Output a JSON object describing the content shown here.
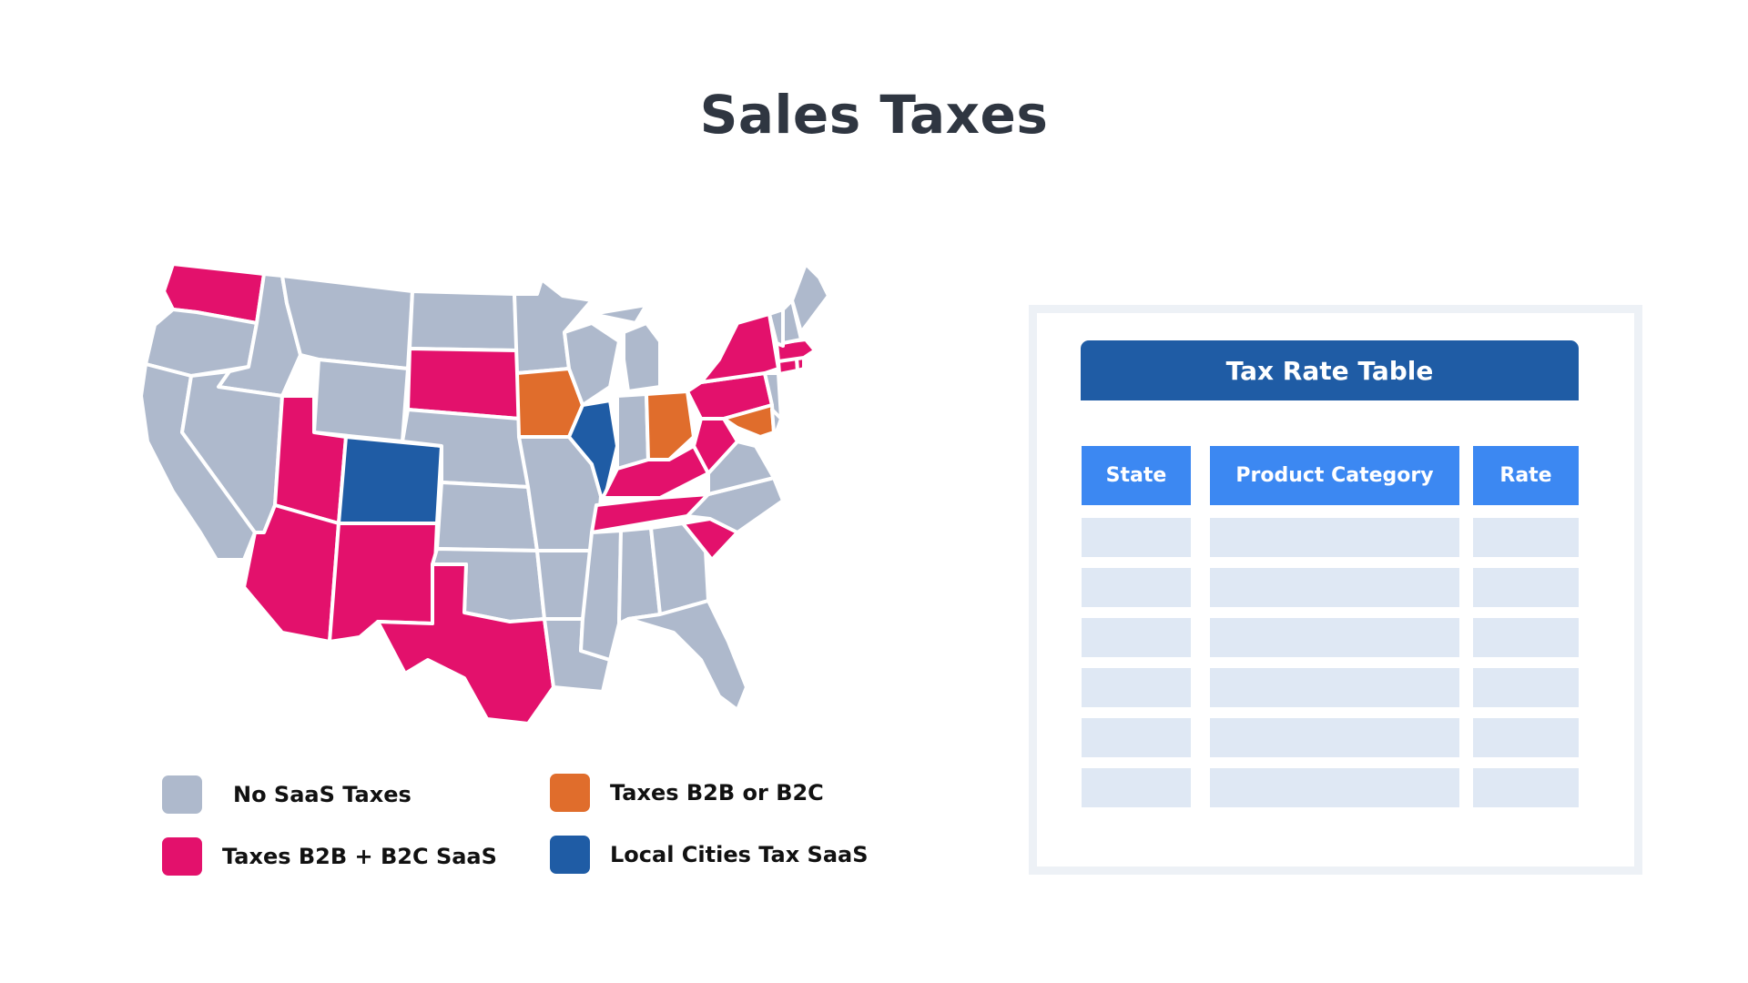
{
  "title": "Sales Taxes",
  "colors": {
    "no_saas": "#aeb9cc",
    "b2b_b2c": "#e3116c",
    "b2b_or_b2c": "#e06d2c",
    "local_cities": "#1f5ca5",
    "table_header": "#1f5ca5",
    "column_header": "#3c88f2",
    "cell": "#dfe8f4"
  },
  "legend": [
    {
      "label": "No SaaS Taxes",
      "color": "#aeb9cc"
    },
    {
      "label": "Taxes B2B + B2C SaaS",
      "color": "#e3116c"
    },
    {
      "label": "Taxes B2B or B2C",
      "color": "#e06d2c"
    },
    {
      "label": "Local Cities Tax SaaS",
      "color": "#1f5ca5"
    }
  ],
  "map": {
    "region": "United States",
    "states": {
      "WA": "b2b_b2c",
      "OR": "no_saas",
      "CA": "no_saas",
      "ID": "no_saas",
      "NV": "no_saas",
      "MT": "no_saas",
      "WY": "no_saas",
      "UT": "b2b_b2c",
      "AZ": "b2b_b2c",
      "CO": "local_cities",
      "NM": "b2b_b2c",
      "ND": "no_saas",
      "SD": "b2b_b2c",
      "NE": "no_saas",
      "KS": "no_saas",
      "OK": "no_saas",
      "TX": "b2b_b2c",
      "MN": "no_saas",
      "IA": "b2b_or_b2c",
      "MO": "no_saas",
      "AR": "no_saas",
      "LA": "no_saas",
      "WI": "no_saas",
      "IL": "local_cities",
      "MI": "no_saas",
      "IN": "no_saas",
      "OH": "b2b_or_b2c",
      "KY": "b2b_b2c",
      "TN": "b2b_b2c",
      "MS": "no_saas",
      "AL": "no_saas",
      "GA": "no_saas",
      "FL": "no_saas",
      "SC": "b2b_b2c",
      "NC": "no_saas",
      "VA": "no_saas",
      "WV": "b2b_b2c",
      "PA": "b2b_b2c",
      "NY": "b2b_b2c",
      "NJ": "no_saas",
      "MD": "b2b_or_b2c",
      "DE": "no_saas",
      "CT": "b2b_b2c",
      "RI": "b2b_b2c",
      "MA": "b2b_b2c",
      "VT": "no_saas",
      "NH": "no_saas",
      "ME": "no_saas"
    }
  },
  "table": {
    "title": "Tax Rate Table",
    "columns": [
      "State",
      "Product Category",
      "Rate"
    ],
    "rows": [
      [
        "",
        "",
        ""
      ],
      [
        "",
        "",
        ""
      ],
      [
        "",
        "",
        ""
      ],
      [
        "",
        "",
        ""
      ],
      [
        "",
        "",
        ""
      ],
      [
        "",
        "",
        ""
      ]
    ]
  }
}
